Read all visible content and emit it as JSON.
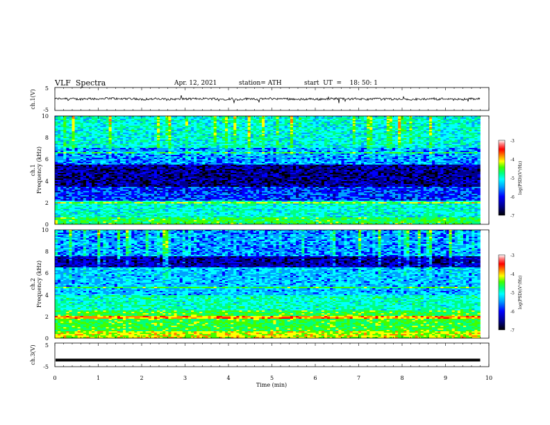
{
  "header": {
    "title": "VLF  Spectra",
    "date": "Apr. 12, 2021",
    "station": "station= ATH",
    "start": "start  UT  =    18: 50: 1"
  },
  "chart_data": [
    {
      "type": "line",
      "title": "",
      "ylabel": "ch.1(V)",
      "ylim": [
        -5,
        5
      ],
      "ytick_labels": [
        "5",
        "-5"
      ],
      "xlim": [
        0,
        10
      ],
      "level": 0,
      "color": "#000000"
    },
    {
      "type": "heatmap",
      "ylabel": "ch.1\nFrequency (kHz)",
      "ylim": [
        0,
        10
      ],
      "ytick_labels": [
        "0",
        "2",
        "4",
        "6",
        "8",
        "10"
      ],
      "xlim": [
        0,
        10
      ],
      "colorbar": {
        "label": "log(PSD)(V²/Hz)",
        "range": [
          -7,
          -3
        ],
        "tick_labels": [
          "-3",
          "-4",
          "-5",
          "-6",
          "-7"
        ]
      }
    },
    {
      "type": "heatmap",
      "ylabel": "ch.2\nFrequency (kHz)",
      "ylim": [
        0,
        10
      ],
      "ytick_labels": [
        "0",
        "2",
        "4",
        "6",
        "8",
        "10"
      ],
      "xlim": [
        0,
        10
      ],
      "colorbar": {
        "label": "log(PSD)(V²/Hz)",
        "range": [
          -7,
          -3
        ],
        "tick_labels": [
          "-3",
          "-4",
          "-5",
          "-6",
          "-7"
        ]
      }
    },
    {
      "type": "line",
      "ylabel": "ch.3(V)",
      "ylim": [
        -5,
        5
      ],
      "ytick_labels": [
        "5",
        "-5"
      ],
      "xlim": [
        0,
        10
      ],
      "level": -2.2,
      "color": "#000000"
    }
  ],
  "xaxis": {
    "label": "Time  (min)",
    "range": [
      0,
      10
    ],
    "tick_labels": [
      "0",
      "1",
      "2",
      "3",
      "4",
      "5",
      "6",
      "7",
      "8",
      "9",
      "10"
    ],
    "data_end": 9.8
  },
  "colormap": [
    "#000000",
    "#00008c",
    "#0000ff",
    "#00a0ff",
    "#00ffff",
    "#00ff80",
    "#40ff00",
    "#ffff00",
    "#ff8000",
    "#ff0000",
    "#ff8080",
    "#ffffff"
  ]
}
